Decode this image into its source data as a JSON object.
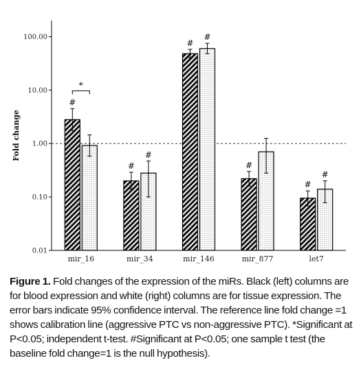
{
  "chart_data": {
    "type": "bar",
    "ylabel": "Fold change",
    "yscale": "log",
    "ylim": [
      0.01,
      200
    ],
    "yticks": [
      "0.01",
      "0.10",
      "1.00",
      "10.00",
      "100.00"
    ],
    "reference_line": 1.0,
    "categories": [
      "mir_16",
      "mir_34",
      "mir_146",
      "mir_877",
      "let7"
    ],
    "series": [
      {
        "pattern": "hatched",
        "values": [
          2.8,
          0.2,
          48,
          0.22,
          0.095
        ],
        "ci_low": [
          1.75,
          0.14,
          40,
          0.16,
          0.068
        ],
        "ci_high": [
          4.5,
          0.29,
          58,
          0.3,
          0.13
        ],
        "marks": [
          "#",
          "#",
          "#",
          "#",
          "#"
        ]
      },
      {
        "pattern": "dotted",
        "values": [
          0.92,
          0.28,
          60,
          0.7,
          0.14
        ],
        "ci_low": [
          0.58,
          0.1,
          48,
          0.28,
          0.078
        ],
        "ci_high": [
          1.45,
          0.47,
          75,
          1.25,
          0.2
        ],
        "marks": [
          "",
          "#",
          "#",
          "",
          "#"
        ]
      }
    ],
    "annotations": [
      {
        "text": "*",
        "category": "mir_16",
        "type": "bracket"
      }
    ]
  },
  "caption": {
    "label": "Figure 1.",
    "text": " Fold changes of the expression of the miRs. Black (left) columns are for blood expression and white (right) columns are for tissue expression. The error bars indicate 95% confidence interval. The reference line fold change =1 shows calibration line (aggressive PTC vs non-aggressive PTC). *Significant at P<0.05; independent t-test. #Significant at P<0.05; one sample t test (the baseline fold change=1 is the null hypothesis)."
  }
}
